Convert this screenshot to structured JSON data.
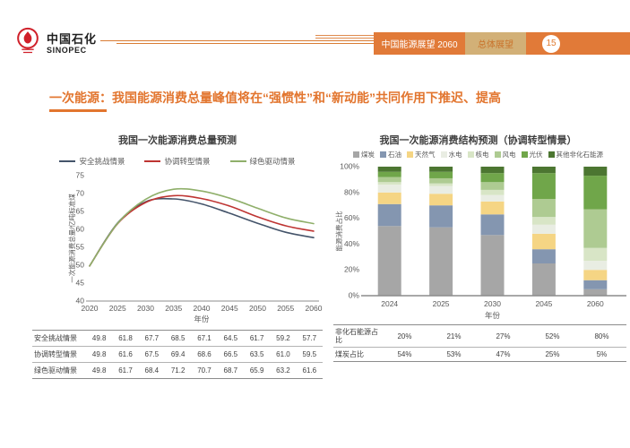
{
  "header": {
    "logo_cn": "中国石化",
    "logo_en": "SINOPEC",
    "bar_title": "中国能源展望 2060",
    "bar_section": "总体展望",
    "page_number": "15"
  },
  "title": {
    "text": "一次能源：我国能源消费总量峰值将在“强惯性”和“新动能”共同作用下推迟、提高"
  },
  "chart_data": [
    {
      "type": "line",
      "title": "我国一次能源消费总量预测",
      "xlabel": "年份",
      "ylabel": "一次能源消费总量/亿吨标准煤",
      "ylim": [
        40,
        75
      ],
      "yticks": [
        40,
        45,
        50,
        55,
        60,
        65,
        70,
        75
      ],
      "x": [
        2020,
        2025,
        2030,
        2035,
        2040,
        2045,
        2050,
        2055,
        2060
      ],
      "grid": false,
      "legend_position": "top",
      "series": [
        {
          "name": "安全挑战情景",
          "color": "#44546a",
          "values": [
            49.8,
            61.8,
            67.7,
            68.5,
            67.1,
            64.5,
            61.7,
            59.2,
            57.7
          ]
        },
        {
          "name": "协调转型情景",
          "color": "#be3432",
          "values": [
            49.8,
            61.6,
            67.5,
            69.4,
            68.6,
            66.5,
            63.5,
            61.0,
            59.5
          ]
        },
        {
          "name": "绿色驱动情景",
          "color": "#8faf6a",
          "values": [
            49.8,
            61.7,
            68.4,
            71.2,
            70.7,
            68.7,
            65.9,
            63.2,
            61.6
          ]
        }
      ]
    },
    {
      "type": "bar",
      "stacked": true,
      "title": "我国一次能源消费结构预测（协调转型情景）",
      "xlabel": "年份",
      "ylabel": "能源消费占比",
      "ylim": [
        0,
        100
      ],
      "yticks": [
        "0%",
        "20%",
        "40%",
        "60%",
        "80%",
        "100%"
      ],
      "categories": [
        "2024",
        "2025",
        "2030",
        "2045",
        "2060"
      ],
      "legend_position": "top",
      "series": [
        {
          "name": "煤炭",
          "color": "#a6a6a6",
          "values": [
            54,
            53,
            47,
            25,
            5
          ]
        },
        {
          "name": "石油",
          "color": "#8496b0",
          "values": [
            17,
            17,
            16,
            11,
            7
          ]
        },
        {
          "name": "天然气",
          "color": "#f5d584",
          "values": [
            9,
            9,
            10,
            12,
            8
          ]
        },
        {
          "name": "水电",
          "color": "#e9ede3",
          "values": [
            6,
            6,
            5,
            7,
            7
          ]
        },
        {
          "name": "核电",
          "color": "#d8e5c6",
          "values": [
            2,
            2,
            4,
            6,
            10
          ]
        },
        {
          "name": "风电",
          "color": "#aecb92",
          "values": [
            4,
            4,
            6,
            14,
            30
          ]
        },
        {
          "name": "光伏",
          "color": "#70a64a",
          "values": [
            4,
            5,
            7,
            20,
            26
          ]
        },
        {
          "name": "其他非化石能源",
          "color": "#4c7631",
          "values": [
            4,
            4,
            5,
            5,
            7
          ]
        }
      ]
    }
  ],
  "left_table": {
    "rows": [
      {
        "label": "安全挑战情景",
        "values": [
          "49.8",
          "61.8",
          "67.7",
          "68.5",
          "67.1",
          "64.5",
          "61.7",
          "59.2",
          "57.7"
        ]
      },
      {
        "label": "协调转型情景",
        "values": [
          "49.8",
          "61.6",
          "67.5",
          "69.4",
          "68.6",
          "66.5",
          "63.5",
          "61.0",
          "59.5"
        ]
      },
      {
        "label": "绿色驱动情景",
        "values": [
          "49.8",
          "61.7",
          "68.4",
          "71.2",
          "70.7",
          "68.7",
          "65.9",
          "63.2",
          "61.6"
        ]
      }
    ]
  },
  "right_table": {
    "rows": [
      {
        "label": "非化石能源占比",
        "values": [
          "20%",
          "21%",
          "27%",
          "52%",
          "80%"
        ]
      },
      {
        "label": "煤炭占比",
        "values": [
          "54%",
          "53%",
          "47%",
          "25%",
          "5%"
        ]
      }
    ]
  },
  "colors": {
    "accent": "#e2752e",
    "header_orange": "#e17a38",
    "header_tan": "#d2b077",
    "sinopec_red": "#d0202a"
  }
}
